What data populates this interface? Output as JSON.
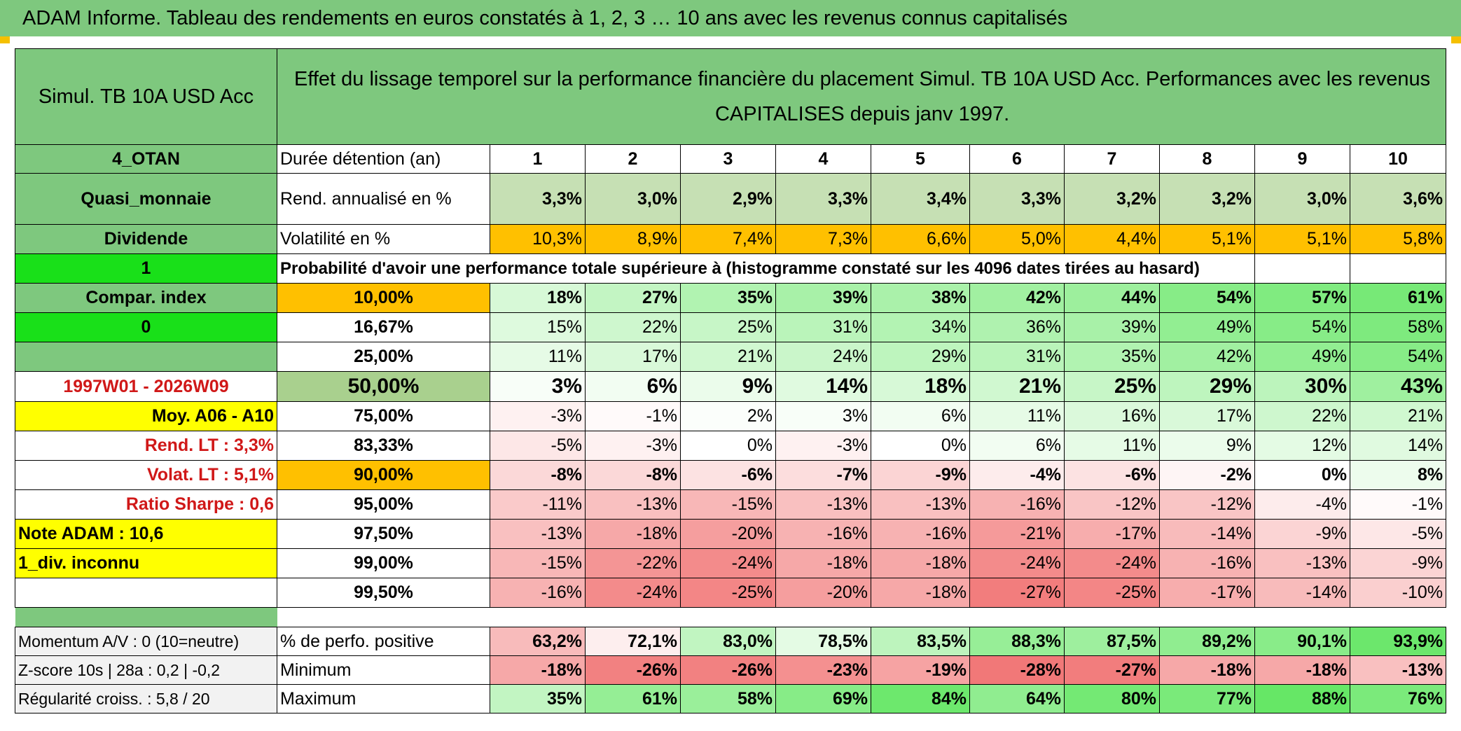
{
  "title": "ADAM Informe. Tableau des rendements en euros constatés à 1, 2, 3 … 10 ans avec les revenus connus capitalisés",
  "fund_name": "Simul. TB 10A USD Acc",
  "description": "Effet du lissage temporel sur la performance financière du placement Simul. TB 10A USD Acc. Performances avec les revenus CAPITALISES depuis janv 1997.",
  "side": {
    "code": "4_OTAN",
    "category": "Quasi_monnaie",
    "revenue_type": "Dividende",
    "flag1": "1",
    "compar_index": "Compar. index",
    "flag2": "0",
    "period": "1997W01 - 2026W09",
    "moy": "Moy. A06 - A10",
    "rend_lt": "Rend. LT :   3,3%",
    "volat_lt": "Volat. LT :   5,1%",
    "sharpe": "Ratio Sharpe :    0,6",
    "note": "Note ADAM : 10,6",
    "div": "1_div. inconnu",
    "momentum": "Momentum A/V : 0 (10=neutre)",
    "zscore": "Z-score 10s | 28a : 0,2 | -0,2",
    "regularite": "Régularité croiss. : 5,8 / 20"
  },
  "labels": {
    "duree": "Durée détention (an)",
    "rend": "Rend. annualisé en %",
    "vol": "Volatilité en %",
    "proba": "Probabilité d'avoir une performance totale supérieure à (histogramme constaté sur les 4096 dates tirées au hasard)",
    "pos": "% de perfo. positive",
    "min": "Minimum",
    "max": "Maximum"
  },
  "years": [
    "1",
    "2",
    "3",
    "4",
    "5",
    "6",
    "7",
    "8",
    "9",
    "10"
  ],
  "rend": [
    "3,3%",
    "3,0%",
    "2,9%",
    "3,3%",
    "3,4%",
    "3,3%",
    "3,2%",
    "3,2%",
    "3,0%",
    "3,6%"
  ],
  "vol": [
    "10,3%",
    "8,9%",
    "7,4%",
    "7,3%",
    "6,6%",
    "5,0%",
    "4,4%",
    "5,1%",
    "5,1%",
    "5,8%"
  ],
  "proba_rows": [
    {
      "threshold": "10,00%",
      "values": [
        "18%",
        "27%",
        "35%",
        "39%",
        "38%",
        "42%",
        "44%",
        "54%",
        "57%",
        "61%"
      ]
    },
    {
      "threshold": "16,67%",
      "values": [
        "15%",
        "22%",
        "25%",
        "31%",
        "34%",
        "36%",
        "39%",
        "49%",
        "54%",
        "58%"
      ]
    },
    {
      "threshold": "25,00%",
      "values": [
        "11%",
        "17%",
        "21%",
        "24%",
        "29%",
        "31%",
        "35%",
        "42%",
        "49%",
        "54%"
      ]
    },
    {
      "threshold": "50,00%",
      "values": [
        "3%",
        "6%",
        "9%",
        "14%",
        "18%",
        "21%",
        "25%",
        "29%",
        "30%",
        "43%"
      ]
    },
    {
      "threshold": "75,00%",
      "values": [
        "-3%",
        "-1%",
        "2%",
        "3%",
        "6%",
        "11%",
        "16%",
        "17%",
        "22%",
        "21%"
      ]
    },
    {
      "threshold": "83,33%",
      "values": [
        "-5%",
        "-3%",
        "0%",
        "-3%",
        "0%",
        "6%",
        "11%",
        "9%",
        "12%",
        "14%"
      ]
    },
    {
      "threshold": "90,00%",
      "values": [
        "-8%",
        "-8%",
        "-6%",
        "-7%",
        "-9%",
        "-4%",
        "-6%",
        "-2%",
        "0%",
        "8%"
      ]
    },
    {
      "threshold": "95,00%",
      "values": [
        "-11%",
        "-13%",
        "-15%",
        "-13%",
        "-13%",
        "-16%",
        "-12%",
        "-12%",
        "-4%",
        "-1%"
      ]
    },
    {
      "threshold": "97,50%",
      "values": [
        "-13%",
        "-18%",
        "-20%",
        "-16%",
        "-16%",
        "-21%",
        "-17%",
        "-14%",
        "-9%",
        "-5%"
      ]
    },
    {
      "threshold": "99,00%",
      "values": [
        "-15%",
        "-22%",
        "-24%",
        "-18%",
        "-18%",
        "-24%",
        "-24%",
        "-16%",
        "-13%",
        "-9%"
      ]
    },
    {
      "threshold": "99,50%",
      "values": [
        "-16%",
        "-24%",
        "-25%",
        "-20%",
        "-18%",
        "-27%",
        "-25%",
        "-17%",
        "-14%",
        "-10%"
      ]
    }
  ],
  "positive": [
    "63,2%",
    "72,1%",
    "83,0%",
    "78,5%",
    "83,5%",
    "88,3%",
    "87,5%",
    "89,2%",
    "90,1%",
    "93,9%"
  ],
  "minimum": [
    "-18%",
    "-26%",
    "-26%",
    "-23%",
    "-19%",
    "-28%",
    "-27%",
    "-18%",
    "-18%",
    "-13%"
  ],
  "maximum": [
    "35%",
    "61%",
    "58%",
    "69%",
    "84%",
    "64%",
    "80%",
    "77%",
    "88%",
    "76%"
  ],
  "colors": {
    "header_green": "#7ec87e",
    "bright_green": "#19e019",
    "yellow": "#ffff00",
    "orange": "#ffc000",
    "red_text": "#d01818"
  }
}
